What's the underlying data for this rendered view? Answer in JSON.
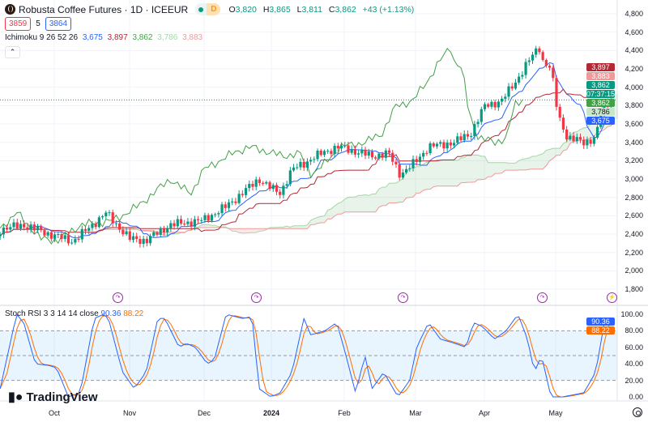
{
  "header": {
    "title": "Robusta Coffee Futures · 1D · ICEEUR",
    "interval_badge": "D",
    "ohlc": {
      "o_label": "O",
      "o": "3,820",
      "h_label": "H",
      "h": "3,865",
      "l_label": "L",
      "l": "3,811",
      "c_label": "C",
      "c": "3,862",
      "change": "+43 (+1.13%)"
    },
    "bid": "3859",
    "spread": "5",
    "ask": "3864"
  },
  "ichimoku": {
    "label": "Ichimoku 9 26 52 26",
    "v1": "3,675",
    "v2": "3,897",
    "v3": "3,862",
    "v4": "3,786",
    "v5": "3,883"
  },
  "stoch": {
    "label": "Stoch RSI 3 3 14 14 close",
    "k": "90.36",
    "d": "88.22"
  },
  "price_axis": [
    "4,800",
    "4,600",
    "4,400",
    "4,200",
    "4,000",
    "3,800",
    "3,600",
    "3,400",
    "3,200",
    "3,000",
    "2,800",
    "2,600",
    "2,400",
    "2,200",
    "2,000",
    "1,800"
  ],
  "price_tags": {
    "kijun": "3,897",
    "span_b": "3,883",
    "last": "3,862",
    "countdown": "07:37:15",
    "lagging": "3,862",
    "span_a": "3,786",
    "tenkan": "3,675"
  },
  "rsi_axis": [
    "100.00",
    "80.00",
    "60.00",
    "40.00",
    "20.00",
    "0.00"
  ],
  "time_axis": [
    "Oct",
    "Nov",
    "Dec",
    "2024",
    "Feb",
    "Mar",
    "Apr",
    "May"
  ],
  "brand": "TradingView",
  "colors": {
    "up": "#089981",
    "down": "#f23645",
    "tenkan": "#2962ff",
    "kijun": "#b22833",
    "lagging": "#43a047",
    "k": "#2962ff",
    "d": "#ff6d00"
  },
  "chart_data": {
    "type": "candlestick",
    "title": "Robusta Coffee Futures · 1D · ICEEUR",
    "ylim": [
      1800,
      4800
    ],
    "close_keypoints": [
      [
        "2023-09-08",
        2450
      ],
      [
        "2023-09-18",
        2500
      ],
      [
        "2023-09-29",
        2400
      ],
      [
        "2023-10-09",
        2320
      ],
      [
        "2023-10-23",
        2630
      ],
      [
        "2023-11-02",
        2350
      ],
      [
        "2023-11-09",
        2330
      ],
      [
        "2023-11-19",
        2500
      ],
      [
        "2023-12-03",
        2550
      ],
      [
        "2023-12-13",
        2700
      ],
      [
        "2023-12-20",
        2850
      ],
      [
        "2023-12-27",
        3000
      ],
      [
        "2024-01-01",
        2900
      ],
      [
        "2024-01-05",
        2850
      ],
      [
        "2024-01-10",
        3100
      ],
      [
        "2024-01-17",
        3200
      ],
      [
        "2024-01-24",
        3300
      ],
      [
        "2024-01-30",
        3350
      ],
      [
        "2024-02-06",
        3300
      ],
      [
        "2024-02-13",
        3250
      ],
      [
        "2024-02-20",
        3280
      ],
      [
        "2024-02-25",
        3050
      ],
      [
        "2024-03-01",
        3150
      ],
      [
        "2024-03-08",
        3350
      ],
      [
        "2024-03-19",
        3400
      ],
      [
        "2024-03-26",
        3500
      ],
      [
        "2024-04-01",
        3800
      ],
      [
        "2024-04-08",
        3850
      ],
      [
        "2024-04-15",
        4100
      ],
      [
        "2024-04-20",
        4300
      ],
      [
        "2024-04-24",
        4450
      ],
      [
        "2024-04-25",
        4300
      ],
      [
        "2024-04-29",
        4200
      ],
      [
        "2024-05-02",
        3700
      ],
      [
        "2024-05-06",
        3450
      ],
      [
        "2024-05-13",
        3400
      ],
      [
        "2024-05-18",
        3450
      ],
      [
        "2024-05-21",
        3800
      ],
      [
        "2024-05-25",
        3862
      ]
    ],
    "stoch_k_keypoints": [
      [
        "2023-09-08",
        10
      ],
      [
        "2023-09-15",
        100
      ],
      [
        "2023-09-18",
        90
      ],
      [
        "2023-09-23",
        40
      ],
      [
        "2023-09-29",
        38
      ],
      [
        "2023-10-02",
        35
      ],
      [
        "2023-10-07",
        0
      ],
      [
        "2023-10-12",
        5
      ],
      [
        "2023-10-18",
        95
      ],
      [
        "2023-10-22",
        100
      ],
      [
        "2023-10-24",
        95
      ],
      [
        "2023-10-30",
        30
      ],
      [
        "2023-11-04",
        10
      ],
      [
        "2023-11-09",
        30
      ],
      [
        "2023-11-14",
        95
      ],
      [
        "2023-11-17",
        95
      ],
      [
        "2023-11-23",
        60
      ],
      [
        "2023-11-26",
        65
      ],
      [
        "2023-11-30",
        60
      ],
      [
        "2023-12-05",
        40
      ],
      [
        "2023-12-08",
        45
      ],
      [
        "2023-12-13",
        100
      ],
      [
        "2023-12-20",
        95
      ],
      [
        "2023-12-24",
        97
      ],
      [
        "2023-12-27",
        10
      ],
      [
        "2024-01-01",
        0
      ],
      [
        "2024-01-05",
        5
      ],
      [
        "2024-01-10",
        30
      ],
      [
        "2024-01-15",
        95
      ],
      [
        "2024-01-18",
        75
      ],
      [
        "2024-01-24",
        80
      ],
      [
        "2024-01-29",
        90
      ],
      [
        "2024-02-01",
        60
      ],
      [
        "2024-02-06",
        5
      ],
      [
        "2024-02-10",
        50
      ],
      [
        "2024-02-13",
        10
      ],
      [
        "2024-02-18",
        30
      ],
      [
        "2024-02-24",
        0
      ],
      [
        "2024-02-29",
        20
      ],
      [
        "2024-03-03",
        60
      ],
      [
        "2024-03-08",
        90
      ],
      [
        "2024-03-13",
        70
      ],
      [
        "2024-03-19",
        65
      ],
      [
        "2024-03-24",
        60
      ],
      [
        "2024-03-27",
        90
      ],
      [
        "2024-03-31",
        85
      ],
      [
        "2024-04-05",
        70
      ],
      [
        "2024-04-10",
        80
      ],
      [
        "2024-04-15",
        100
      ],
      [
        "2024-04-19",
        70
      ],
      [
        "2024-04-22",
        30
      ],
      [
        "2024-04-25",
        50
      ],
      [
        "2024-04-29",
        0
      ],
      [
        "2024-05-04",
        0
      ],
      [
        "2024-05-13",
        5
      ],
      [
        "2024-05-18",
        30
      ],
      [
        "2024-05-22",
        95
      ],
      [
        "2024-05-25",
        90.36
      ]
    ],
    "stoch_ylim": [
      0,
      100
    ],
    "stoch_bands": [
      20,
      50,
      80
    ]
  }
}
